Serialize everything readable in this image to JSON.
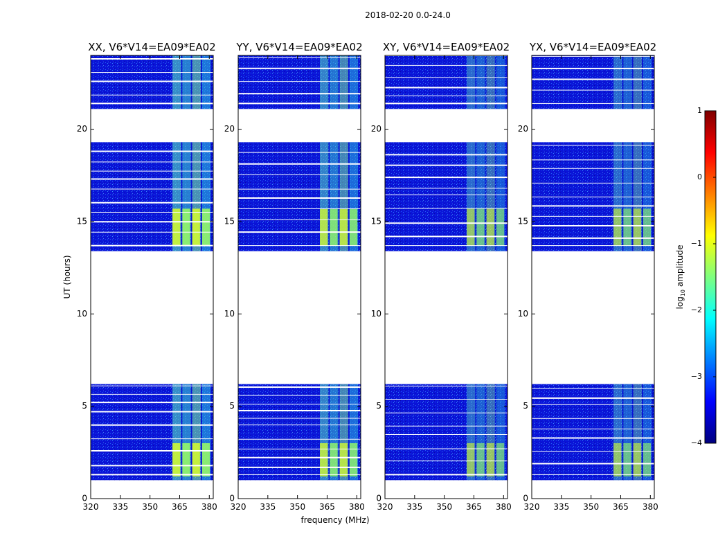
{
  "figure": {
    "suptitle": "2018-02-20 0.0-24.0",
    "xlabel": "frequency (MHz)",
    "ylabel": "UT (hours)"
  },
  "colorbar": {
    "label": "log",
    "label_sub": "10",
    "label_rest": " amplitude",
    "range": [
      -4,
      1
    ],
    "ticks": [
      1,
      0,
      -1,
      -2,
      -3,
      -4
    ],
    "tick_labels": [
      "1",
      "0",
      "−1",
      "−2",
      "−3",
      "−4"
    ],
    "colormap": "jet",
    "colors": [
      "#00007f",
      "#0000ff",
      "#007fff",
      "#00ffff",
      "#7fff7f",
      "#ffff00",
      "#ff7f00",
      "#ff0000",
      "#7f0000"
    ]
  },
  "chart_data": [
    {
      "type": "heatmap",
      "title": "XX, V6*V14=EA09*EA02",
      "xlabel": "frequency (MHz)",
      "ylabel": "UT (hours)",
      "xlim": [
        320,
        382
      ],
      "ylim": [
        0,
        24
      ],
      "xticks": [
        320,
        335,
        350,
        365,
        380
      ],
      "yticks": [
        0,
        5,
        10,
        15,
        20
      ],
      "data_hours": [
        [
          1.0,
          6.2
        ],
        [
          13.4,
          19.3
        ],
        [
          21.1,
          24.0
        ]
      ],
      "band_mhz": [
        361,
        381
      ],
      "bright_hours": [
        [
          1.2,
          3.0
        ],
        [
          13.7,
          15.7
        ]
      ],
      "brightness": 1.0
    },
    {
      "type": "heatmap",
      "title": "YY, V6*V14=EA09*EA02",
      "xlabel": "frequency (MHz)",
      "ylabel": "UT (hours)",
      "xlim": [
        320,
        382
      ],
      "ylim": [
        0,
        24
      ],
      "xticks": [
        320,
        335,
        350,
        365,
        380
      ],
      "yticks": [
        0,
        5,
        10,
        15,
        20
      ],
      "data_hours": [
        [
          1.0,
          6.2
        ],
        [
          13.4,
          19.3
        ],
        [
          21.1,
          24.0
        ]
      ],
      "band_mhz": [
        361,
        381
      ],
      "bright_hours": [
        [
          1.2,
          3.0
        ],
        [
          13.7,
          15.7
        ]
      ],
      "brightness": 0.9
    },
    {
      "type": "heatmap",
      "title": "XY, V6*V14=EA09*EA02",
      "xlabel": "frequency (MHz)",
      "ylabel": "UT (hours)",
      "xlim": [
        320,
        382
      ],
      "ylim": [
        0,
        24
      ],
      "xticks": [
        320,
        335,
        350,
        365,
        380
      ],
      "yticks": [
        0,
        5,
        10,
        15,
        20
      ],
      "data_hours": [
        [
          1.0,
          6.2
        ],
        [
          13.4,
          19.3
        ],
        [
          21.1,
          24.0
        ]
      ],
      "band_mhz": [
        361,
        381
      ],
      "bright_hours": [
        [
          1.2,
          3.0
        ],
        [
          13.7,
          15.7
        ]
      ],
      "brightness": 0.7
    },
    {
      "type": "heatmap",
      "title": "YX, V6*V14=EA09*EA02",
      "xlabel": "frequency (MHz)",
      "ylabel": "UT (hours)",
      "xlim": [
        320,
        382
      ],
      "ylim": [
        0,
        24
      ],
      "xticks": [
        320,
        335,
        350,
        365,
        380
      ],
      "yticks": [
        0,
        5,
        10,
        15,
        20
      ],
      "data_hours": [
        [
          1.0,
          6.2
        ],
        [
          13.4,
          19.3
        ],
        [
          21.1,
          24.0
        ]
      ],
      "band_mhz": [
        361,
        381
      ],
      "bright_hours": [
        [
          1.2,
          3.0
        ],
        [
          13.7,
          15.7
        ]
      ],
      "brightness": 0.7
    }
  ]
}
